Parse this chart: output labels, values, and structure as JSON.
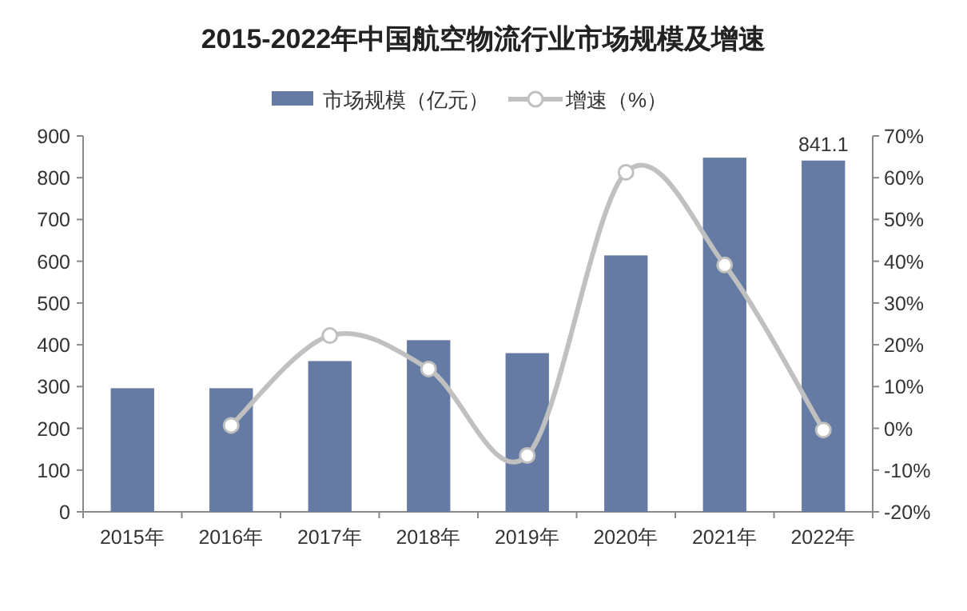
{
  "chart_data": {
    "type": "bar",
    "title": "2015-2022年中国航空物流行业市场规模及增速",
    "categories": [
      "2015年",
      "2016年",
      "2017年",
      "2018年",
      "2019年",
      "2020年",
      "2021年",
      "2022年"
    ],
    "series": [
      {
        "name": "市场规模（亿元）",
        "color": "#667ba3",
        "values": [
          296,
          296,
          361,
          411,
          380,
          614,
          848,
          841.1
        ],
        "value_labels": [
          null,
          null,
          null,
          null,
          null,
          null,
          null,
          "841.1"
        ]
      },
      {
        "name": "增速（%）",
        "type": "line",
        "axis": "y2",
        "color": "#c0c0c0",
        "marker": "circle",
        "values": [
          null,
          0.7,
          22.2,
          14.2,
          -6.5,
          61.3,
          39.1,
          -0.4
        ]
      }
    ],
    "ylim": [
      0,
      900
    ],
    "yticks": [
      0,
      100,
      200,
      300,
      400,
      500,
      600,
      700,
      800,
      900
    ],
    "y2lim": [
      -20,
      70
    ],
    "y2ticks": [
      {
        "value": -20,
        "label": "-20%"
      },
      {
        "value": -10,
        "label": "-10%"
      },
      {
        "value": 0,
        "label": "0%"
      },
      {
        "value": 10,
        "label": "10%"
      },
      {
        "value": 20,
        "label": "20%"
      },
      {
        "value": 30,
        "label": "30%"
      },
      {
        "value": 40,
        "label": "40%"
      },
      {
        "value": 50,
        "label": "50%"
      },
      {
        "value": 60,
        "label": "60%"
      },
      {
        "value": 70,
        "label": "70%"
      }
    ],
    "legend": "top"
  }
}
